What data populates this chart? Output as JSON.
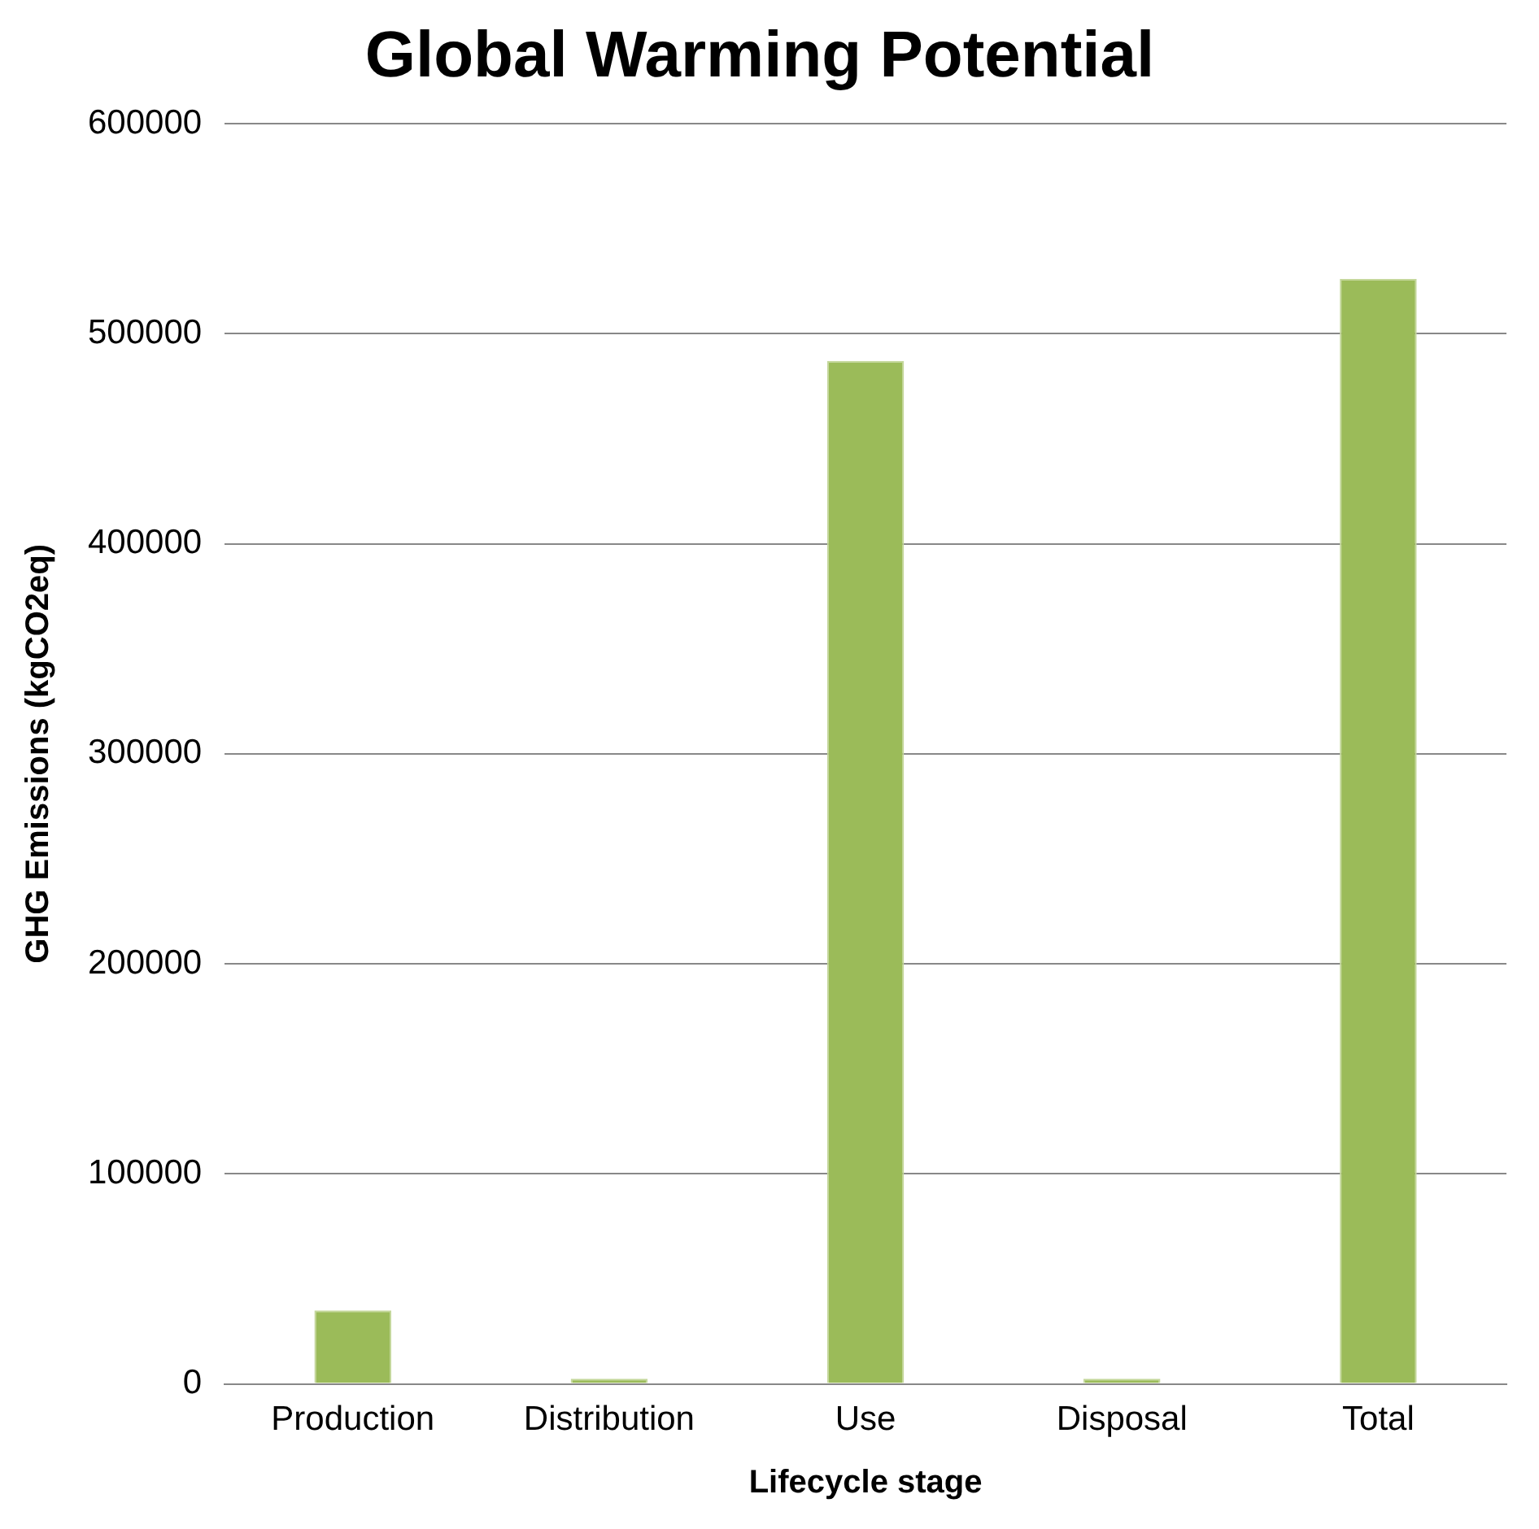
{
  "chart_data": {
    "type": "bar",
    "title": "Global Warming Potential",
    "xlabel": "Lifecycle stage",
    "ylabel": "GHG Emissions (kgCO2eq)",
    "categories": [
      "Production",
      "Distribution",
      "Use",
      "Disposal",
      "Total"
    ],
    "values": [
      35000,
      2500,
      487000,
      2500,
      526000
    ],
    "color": "#9bbb59",
    "ylim": [
      0,
      600000
    ],
    "yticks": [
      0,
      100000,
      200000,
      300000,
      400000,
      500000,
      600000
    ],
    "grid": "y",
    "legend": false
  }
}
